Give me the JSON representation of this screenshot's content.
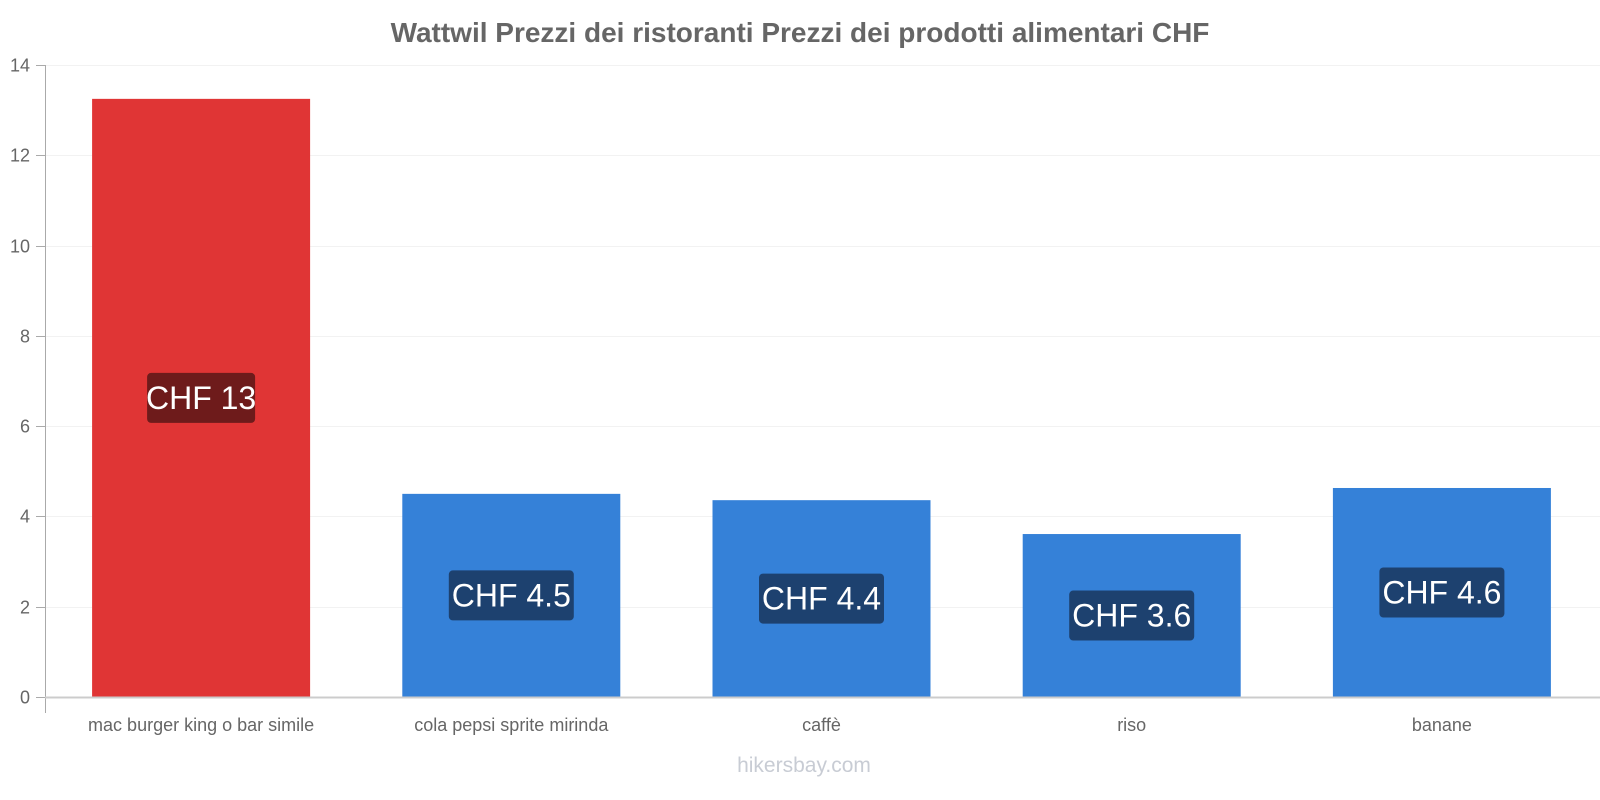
{
  "chart_data": {
    "type": "bar",
    "title": "Wattwil Prezzi dei ristoranti Prezzi dei prodotti alimentari CHF",
    "xlabel": "",
    "ylabel": "",
    "categories": [
      "mac burger king o bar simile",
      "cola pepsi sprite mirinda",
      "caffè",
      "riso",
      "banane"
    ],
    "values": [
      13.25,
      4.5,
      4.36,
      3.61,
      4.63
    ],
    "data_labels": [
      "CHF 13",
      "CHF 4.5",
      "CHF 4.4",
      "CHF 3.6",
      "CHF 4.6"
    ],
    "bar_colors": [
      "#e03535",
      "#3581d8",
      "#3581d8",
      "#3581d8",
      "#3581d8"
    ],
    "label_bg_colors": [
      "#6e1b1b",
      "#1d416f",
      "#1d416f",
      "#1d416f",
      "#1d416f"
    ],
    "ylim": [
      0,
      14
    ],
    "yticks": [
      0,
      2,
      4,
      6,
      8,
      10,
      12,
      14
    ],
    "grid": true,
    "legend": null
  },
  "watermark": "hikersbay.com"
}
